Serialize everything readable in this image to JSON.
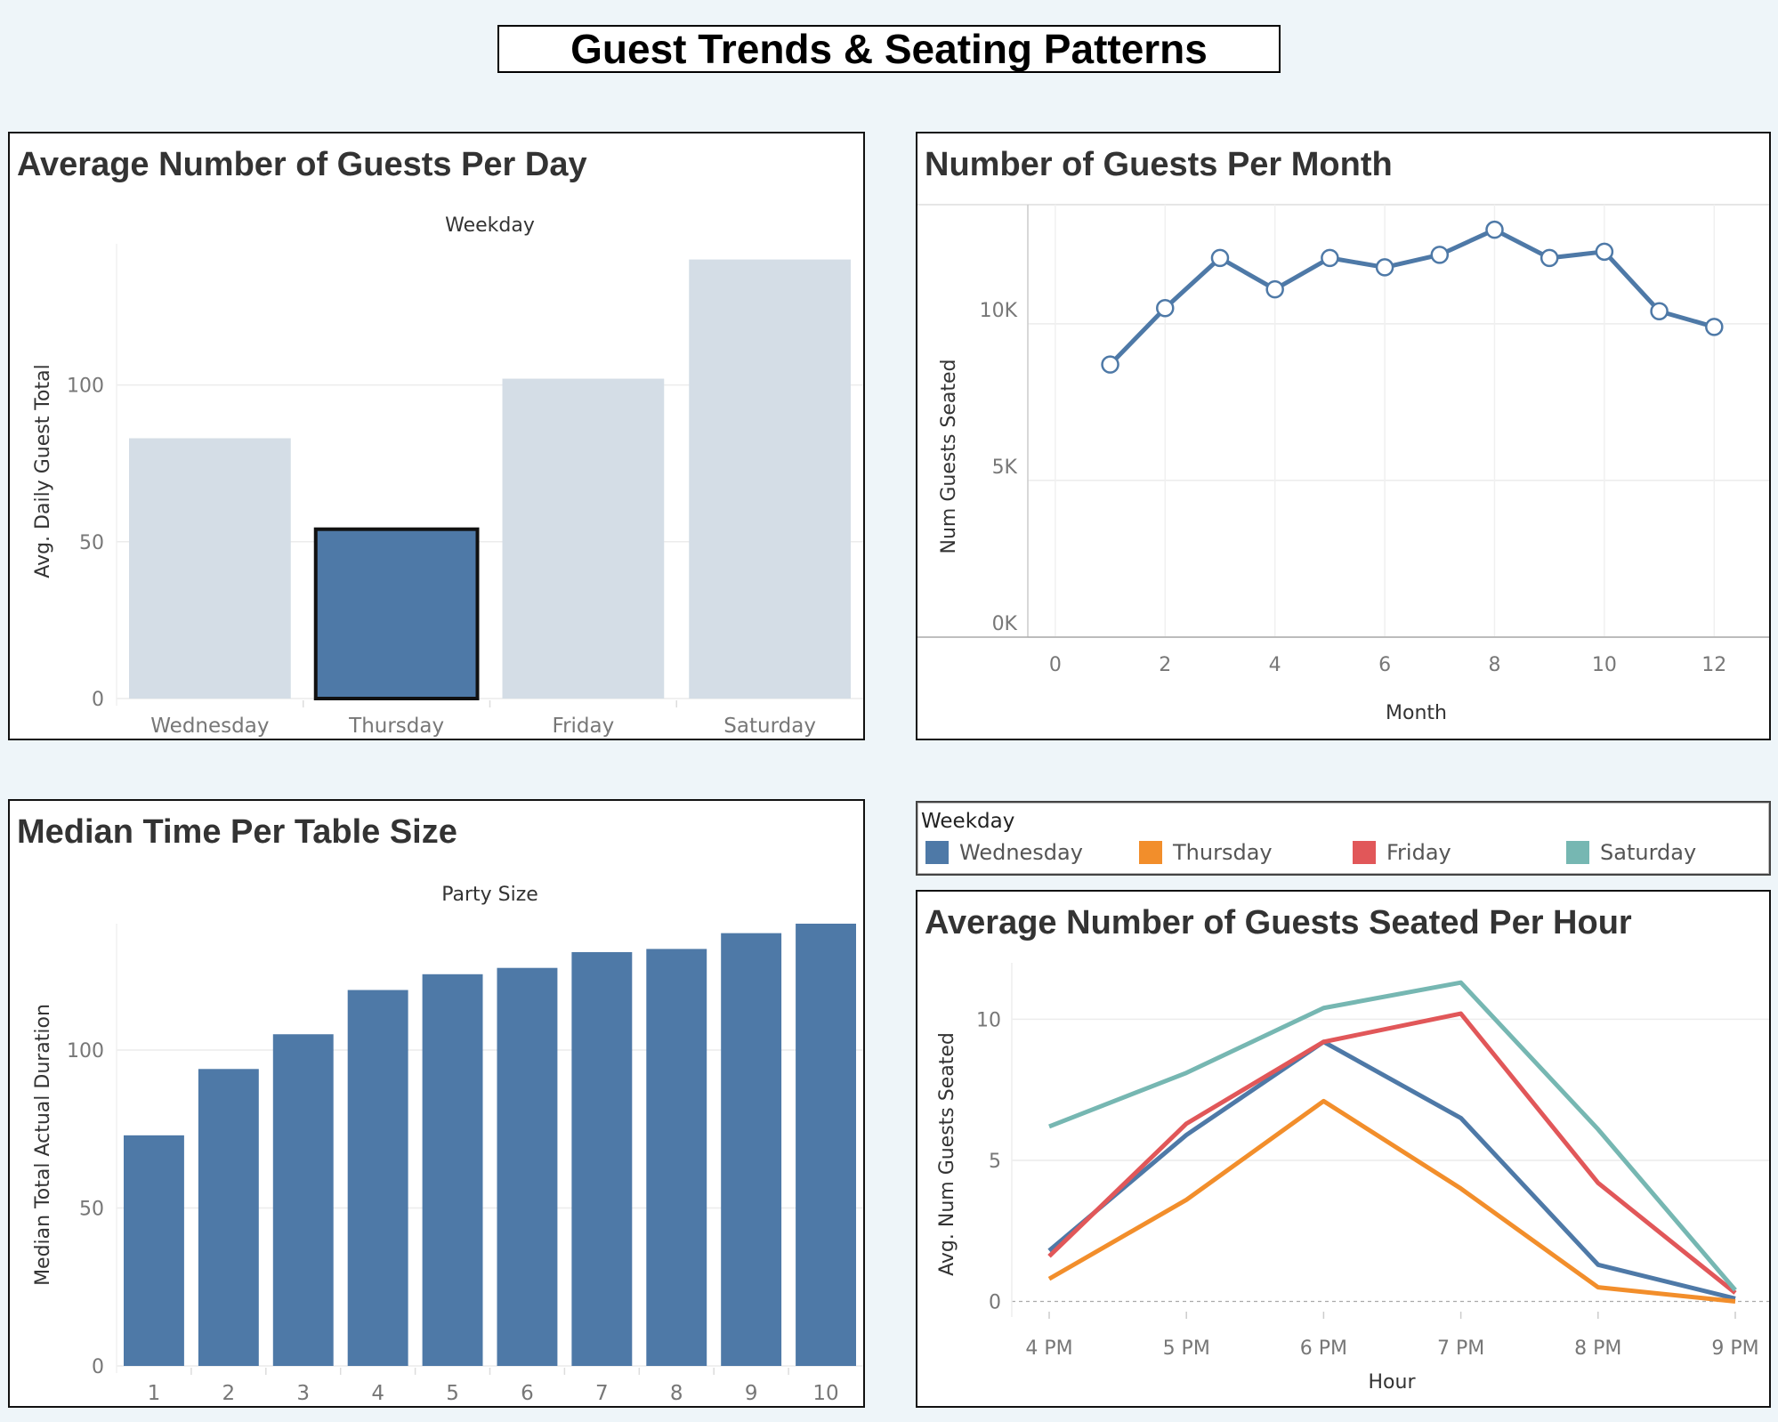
{
  "dashboard": {
    "title": "Guest Trends & Seating Patterns"
  },
  "colors": {
    "blue": "#4e79a7",
    "orange": "#f28e2b",
    "red": "#e15759",
    "teal": "#76b7b2",
    "grey": "#d4dde6"
  },
  "panels": {
    "guests_per_day": {
      "title": "Average Number of Guests Per Day"
    },
    "guests_per_month": {
      "title": "Number of Guests Per Month"
    },
    "time_per_table": {
      "title": "Median Time Per Table Size"
    },
    "guests_per_hour": {
      "title": "Average Number of Guests Seated Per Hour"
    }
  },
  "legend": {
    "title": "Weekday",
    "items": [
      {
        "label": "Wednesday",
        "color": "#4e79a7"
      },
      {
        "label": "Thursday",
        "color": "#f28e2b"
      },
      {
        "label": "Friday",
        "color": "#e15759"
      },
      {
        "label": "Saturday",
        "color": "#76b7b2"
      }
    ]
  },
  "chart_data": [
    {
      "id": "guests_per_day",
      "type": "bar",
      "column_header": "Weekday",
      "ylabel": "Avg. Daily Guest Total",
      "categories": [
        "Wednesday",
        "Thursday",
        "Friday",
        "Saturday"
      ],
      "values": [
        83,
        54,
        102,
        140
      ],
      "highlighted": "Thursday",
      "ylim": [
        0,
        145
      ],
      "yticks": [
        0,
        50,
        100
      ],
      "grid": true
    },
    {
      "id": "guests_per_month",
      "type": "line",
      "xlabel": "Month",
      "ylabel": "Num Guests Seated",
      "x": [
        1,
        2,
        3,
        4,
        5,
        6,
        7,
        8,
        9,
        10,
        11,
        12
      ],
      "values": [
        8700,
        10500,
        12100,
        11100,
        12100,
        11800,
        12200,
        13000,
        12100,
        12300,
        10400,
        9900
      ],
      "xlim": [
        -0.5,
        13
      ],
      "ylim": [
        0,
        13800
      ],
      "xticks": [
        0,
        2,
        4,
        6,
        8,
        10,
        12
      ],
      "yticks": [
        0,
        5000,
        10000
      ],
      "ytick_labels": [
        "0K",
        "5K",
        "10K"
      ],
      "grid": true
    },
    {
      "id": "time_per_table",
      "type": "bar",
      "column_header": "Party Size",
      "ylabel": "Median Total Actual Duration",
      "categories": [
        "1",
        "2",
        "3",
        "4",
        "5",
        "6",
        "7",
        "8",
        "9",
        "10"
      ],
      "values": [
        73,
        94,
        105,
        119,
        124,
        126,
        131,
        132,
        137,
        140
      ],
      "ylim": [
        0,
        140
      ],
      "yticks": [
        0,
        50,
        100
      ],
      "grid": true
    },
    {
      "id": "guests_per_hour",
      "type": "line",
      "xlabel": "Hour",
      "ylabel": "Avg. Num Guests Seated",
      "categories": [
        "4 PM",
        "5 PM",
        "6 PM",
        "7 PM",
        "8 PM",
        "9 PM"
      ],
      "series": [
        {
          "name": "Wednesday",
          "values": [
            1.8,
            5.9,
            9.2,
            6.5,
            1.3,
            0.1
          ]
        },
        {
          "name": "Thursday",
          "values": [
            0.8,
            3.6,
            7.1,
            4.0,
            0.5,
            0.0
          ]
        },
        {
          "name": "Friday",
          "values": [
            1.6,
            6.3,
            9.2,
            10.2,
            4.2,
            0.3
          ]
        },
        {
          "name": "Saturday",
          "values": [
            6.2,
            8.1,
            10.4,
            11.3,
            6.1,
            0.4
          ]
        }
      ],
      "ylim": [
        -0.3,
        12
      ],
      "yticks": [
        0,
        5,
        10
      ],
      "grid": true
    }
  ]
}
